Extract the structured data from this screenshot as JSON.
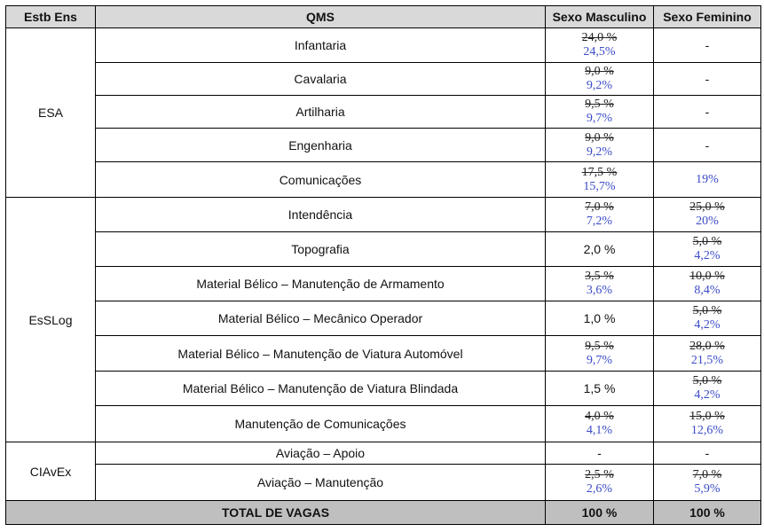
{
  "headers": {
    "estb": "Estb Ens",
    "qms": "QMS",
    "masc": "Sexo Masculino",
    "fem": "Sexo Feminino"
  },
  "groups": [
    "ESA",
    "EsSLog",
    "CIAvEx"
  ],
  "rows": [
    {
      "qms": "Infantaria",
      "masc_old": "24,0 %",
      "masc_new": "24,5%",
      "fem": "-"
    },
    {
      "qms": "Cavalaria",
      "masc_old": "9,0 %",
      "masc_new": "9,2%",
      "fem": "-"
    },
    {
      "qms": "Artilharia",
      "masc_old": "9,5 %",
      "masc_new": "9,7%",
      "fem": "-"
    },
    {
      "qms": "Engenharia",
      "masc_old": "9,0 %",
      "masc_new": "9,2%",
      "fem": "-"
    },
    {
      "qms": "Comunicações",
      "masc_old": "17,5 %",
      "masc_new": "15,7%",
      "fem_new": "19%"
    },
    {
      "qms": "Intendência",
      "masc_old": "7,0 %",
      "masc_new": "7,2%",
      "fem_old": "25,0 %",
      "fem_new": "20%"
    },
    {
      "qms": "Topografia",
      "masc": "2,0 %",
      "fem_old": "5,0 %",
      "fem_new": "4,2%"
    },
    {
      "qms": "Material Bélico – Manutenção de Armamento",
      "masc_old": "3,5 %",
      "masc_new": "3,6%",
      "fem_old": "10,0 %",
      "fem_new": "8,4%"
    },
    {
      "qms": "Material Bélico – Mecânico Operador",
      "masc": "1,0 %",
      "fem_old": "5,0 %",
      "fem_new": "4,2%"
    },
    {
      "qms": "Material Bélico – Manutenção de Viatura Automóvel",
      "masc_old": "9,5 %",
      "masc_new": "9,7%",
      "fem_old": "28,0 %",
      "fem_new": "21,5%"
    },
    {
      "qms": "Material Bélico – Manutenção de Viatura Blindada",
      "masc": "1,5 %",
      "fem_old": "5,0 %",
      "fem_new": "4,2%"
    },
    {
      "qms": "Manutenção de Comunicações",
      "masc_old": "4,0 %",
      "masc_new": "4,1%",
      "fem_old": "15,0 %",
      "fem_new": "12,6%"
    },
    {
      "qms": "Aviação – Apoio",
      "masc": "-",
      "fem": "-"
    },
    {
      "qms": "Aviação – Manutenção",
      "masc_old": "2,5 %",
      "masc_new": "2,6%",
      "fem_old": "7,0 %",
      "fem_new": "5,9%"
    }
  ],
  "total": {
    "label": "TOTAL DE VAGAS",
    "masc": "100 %",
    "fem": "100 %"
  }
}
